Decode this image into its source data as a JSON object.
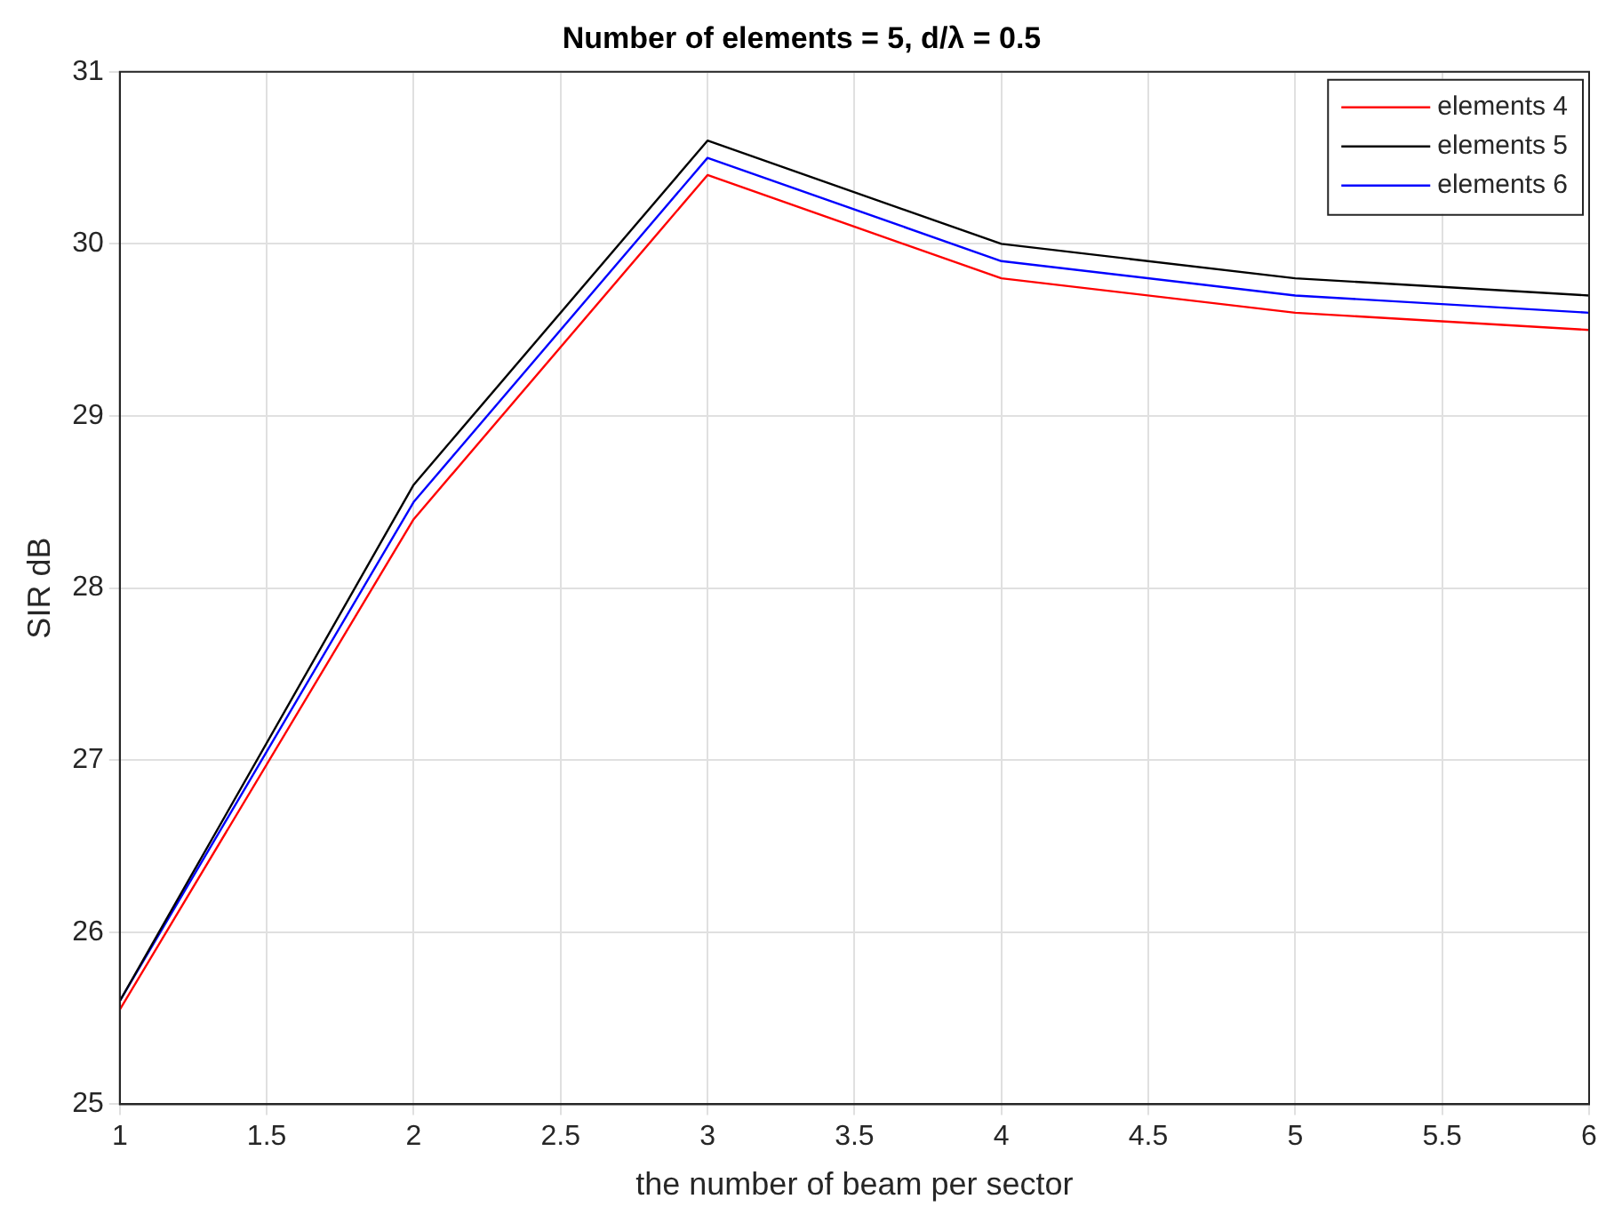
{
  "chart_data": {
    "type": "line",
    "title": "Number of elements = 5, d/λ = 0.5",
    "xlabel": "the number of beam per sector",
    "ylabel": "SIR dB",
    "x": [
      1,
      2,
      3,
      4,
      5,
      6
    ],
    "series": [
      {
        "name": "elements 4",
        "color": "#ff0000",
        "values": [
          25.55,
          28.4,
          30.4,
          29.8,
          29.6,
          29.5
        ]
      },
      {
        "name": "elements 5",
        "color": "#000000",
        "values": [
          25.6,
          28.6,
          30.6,
          30.0,
          29.8,
          29.7
        ]
      },
      {
        "name": "elements 6",
        "color": "#0000ff",
        "values": [
          25.6,
          28.5,
          30.5,
          29.9,
          29.7,
          29.6
        ]
      }
    ],
    "xlim": [
      1,
      6
    ],
    "xticks": [
      1,
      1.5,
      2,
      2.5,
      3,
      3.5,
      4,
      4.5,
      5,
      5.5,
      6
    ],
    "ylim": [
      25,
      31
    ],
    "yticks": [
      25,
      26,
      27,
      28,
      29,
      30,
      31
    ],
    "grid": true,
    "legend": "top right",
    "marker": "none",
    "line_style": "solid"
  }
}
